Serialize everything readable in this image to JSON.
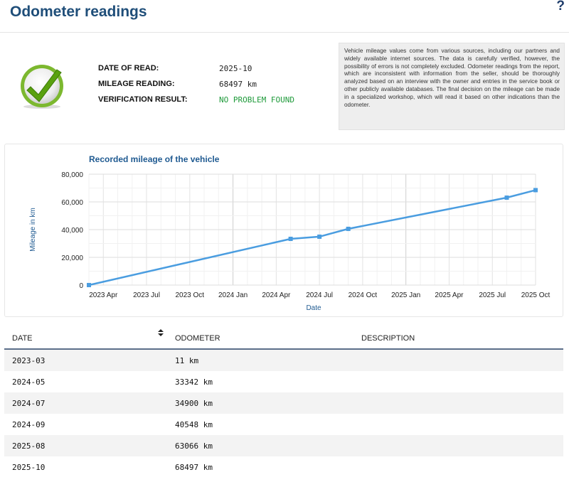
{
  "header": {
    "title": "Odometer readings",
    "help_icon": "?"
  },
  "summary": {
    "rows": [
      {
        "label": "DATE OF READ:",
        "value": "2025-10"
      },
      {
        "label": "MILEAGE READING:",
        "value": "68497 km"
      },
      {
        "label": "VERIFICATION RESULT:",
        "value": "NO PROBLEM FOUND"
      }
    ],
    "result_color": "#1e9a3a",
    "status_icon": "green-checkmark-icon"
  },
  "info_text": "Vehicle mileage values come from various sources, including our partners and widely available internet sources. The data is carefully verified, however, the possibility of errors is not completely excluded. Odometer readings from the report, which are inconsistent with information from the seller, should be thoroughly analyzed based on an interview with the owner and entries in the service book or other publicly available databases. The final decision on the mileage can be made in a specialized workshop, which will read it based on other indications than the odometer.",
  "chart_data": {
    "type": "line",
    "title": "Recorded mileage of the vehicle",
    "xlabel": "Date",
    "ylabel": "Mileage in km",
    "x_tick_labels": [
      "2023 Apr",
      "2023 Jul",
      "2023 Oct",
      "2024 Jan",
      "2024 Apr",
      "2024 Jul",
      "2024 Oct",
      "2025 Jan",
      "2025 Apr",
      "2025 Jul",
      "2025 Oct"
    ],
    "y_tick_labels": [
      "0",
      "20,000",
      "40,000",
      "60,000",
      "80,000"
    ],
    "ylim": [
      0,
      80000
    ],
    "xlim": [
      "2023-03",
      "2025-10"
    ],
    "grid": true,
    "line_color": "#4a9de0",
    "series": [
      {
        "points": [
          {
            "x": "2023-03",
            "y": 11
          },
          {
            "x": "2024-05",
            "y": 33342
          },
          {
            "x": "2024-07",
            "y": 34900
          },
          {
            "x": "2024-09",
            "y": 40548
          },
          {
            "x": "2025-08",
            "y": 63066
          },
          {
            "x": "2025-10",
            "y": 68497
          }
        ]
      }
    ]
  },
  "table": {
    "headers": {
      "date": "DATE",
      "odometer": "ODOMETER",
      "description": "DESCRIPTION"
    },
    "sort_icon": "sort-icon",
    "rows": [
      {
        "date": "2023-03",
        "odometer": "11 km",
        "description": ""
      },
      {
        "date": "2024-05",
        "odometer": "33342 km",
        "description": ""
      },
      {
        "date": "2024-07",
        "odometer": "34900 km",
        "description": ""
      },
      {
        "date": "2024-09",
        "odometer": "40548 km",
        "description": ""
      },
      {
        "date": "2025-08",
        "odometer": "63066 km",
        "description": ""
      },
      {
        "date": "2025-10",
        "odometer": "68497 km",
        "description": ""
      }
    ]
  }
}
